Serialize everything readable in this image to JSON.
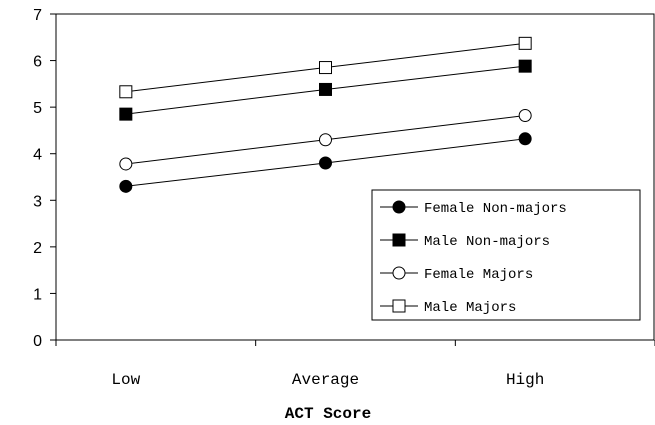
{
  "chart_data": {
    "type": "line",
    "title": "",
    "xlabel": "ACT Score",
    "ylabel": "",
    "categories": [
      "Low",
      "Average",
      "High"
    ],
    "ylim": [
      0,
      7
    ],
    "yticks": [
      0,
      1,
      2,
      3,
      4,
      5,
      6,
      7
    ],
    "grid": false,
    "legend_position": "bottom-right",
    "series": [
      {
        "name": "Female Non-majors",
        "marker": "filled-circle",
        "values": [
          3.3,
          3.8,
          4.32
        ]
      },
      {
        "name": "Male Non-majors",
        "marker": "filled-square",
        "values": [
          4.85,
          5.38,
          5.88
        ]
      },
      {
        "name": "Female Majors",
        "marker": "open-circle",
        "values": [
          3.78,
          4.3,
          4.82
        ]
      },
      {
        "name": "Male Majors",
        "marker": "open-square",
        "values": [
          5.33,
          5.85,
          6.37
        ]
      }
    ]
  }
}
